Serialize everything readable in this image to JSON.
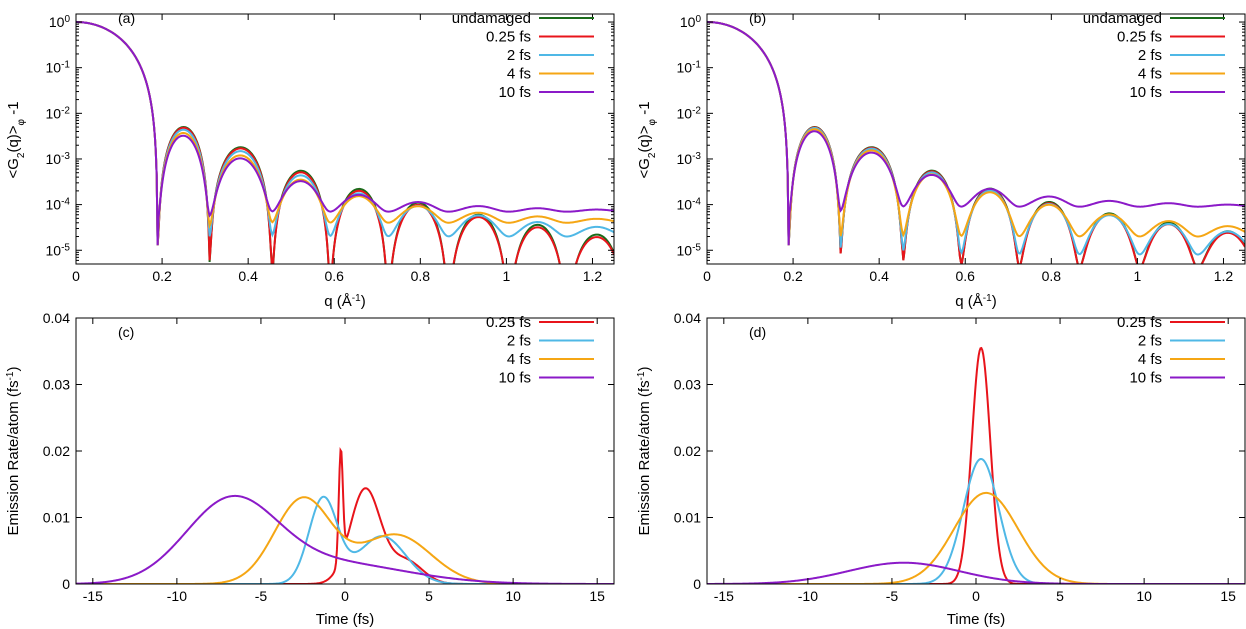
{
  "colors": {
    "undamaged": "#1a6b1a",
    "fs025": "#e8141b",
    "fs2": "#4fb8e6",
    "fs4": "#f5a614",
    "fs10": "#8b1ac8"
  },
  "chart_data": [
    {
      "id": "a",
      "panel_label": "(a)",
      "type": "line",
      "yscale": "log",
      "xlabel": "q (Å",
      "xlabel_sup": "-1",
      "xlabel_close": ")",
      "ylabel_main": "<G",
      "ylabel_sub": "2",
      "ylabel_mid": "(q)>",
      "ylabel_sub2": "φ",
      "ylabel_tail": " -1",
      "xlim": [
        0,
        1.25
      ],
      "ylim": [
        5e-06,
        1.5
      ],
      "xticks": [
        {
          "v": 0,
          "label": "0"
        },
        {
          "v": 0.2,
          "label": "0.2"
        },
        {
          "v": 0.4,
          "label": "0.4"
        },
        {
          "v": 0.6,
          "label": "0.6"
        },
        {
          "v": 0.8,
          "label": "0.8"
        },
        {
          "v": 1,
          "label": "1"
        },
        {
          "v": 1.2,
          "label": "1.2"
        }
      ],
      "yticks": [
        {
          "v": 1,
          "base": "10",
          "exp": "0"
        },
        {
          "v": 0.1,
          "base": "10",
          "exp": "-1"
        },
        {
          "v": 0.01,
          "base": "10",
          "exp": "-2"
        },
        {
          "v": 0.001,
          "base": "10",
          "exp": "-3"
        },
        {
          "v": 0.0001,
          "base": "10",
          "exp": "-4"
        },
        {
          "v": 1e-05,
          "base": "10",
          "exp": "-5"
        }
      ],
      "series": [
        {
          "name": "undamaged",
          "color_key": "undamaged",
          "decay": 0,
          "floor": 0,
          "phase": 0
        },
        {
          "name": "0.25 fs",
          "color_key": "fs025",
          "decay": 0.04,
          "floor": 1e-06,
          "phase": 0
        },
        {
          "name": "2 fs",
          "color_key": "fs2",
          "decay": 0.15,
          "floor": 2e-05,
          "phase": 0
        },
        {
          "name": "4 fs",
          "color_key": "fs4",
          "decay": 0.35,
          "floor": 4e-05,
          "phase": 0
        },
        {
          "name": "10 fs",
          "color_key": "fs10",
          "decay": 0.55,
          "floor": 7e-05,
          "phase": 0
        }
      ]
    },
    {
      "id": "b",
      "panel_label": "(b)",
      "type": "line",
      "yscale": "log",
      "xlabel": "q (Å",
      "xlabel_sup": "-1",
      "xlabel_close": ")",
      "ylabel_main": "<G",
      "ylabel_sub": "2",
      "ylabel_mid": "(q)>",
      "ylabel_sub2": "φ",
      "ylabel_tail": " -1",
      "xlim": [
        0,
        1.25
      ],
      "ylim": [
        5e-06,
        1.5
      ],
      "xticks": [
        {
          "v": 0,
          "label": "0"
        },
        {
          "v": 0.2,
          "label": "0.2"
        },
        {
          "v": 0.4,
          "label": "0.4"
        },
        {
          "v": 0.6,
          "label": "0.6"
        },
        {
          "v": 0.8,
          "label": "0.8"
        },
        {
          "v": 1,
          "label": "1"
        },
        {
          "v": 1.2,
          "label": "1.2"
        }
      ],
      "yticks": [
        {
          "v": 1,
          "base": "10",
          "exp": "0"
        },
        {
          "v": 0.1,
          "base": "10",
          "exp": "-1"
        },
        {
          "v": 0.01,
          "base": "10",
          "exp": "-2"
        },
        {
          "v": 0.001,
          "base": "10",
          "exp": "-3"
        },
        {
          "v": 0.0001,
          "base": "10",
          "exp": "-4"
        },
        {
          "v": 1e-05,
          "base": "10",
          "exp": "-5"
        }
      ],
      "series": [
        {
          "name": "undamaged",
          "color_key": "undamaged",
          "decay": 0,
          "floor": 4e-06,
          "phase": 0
        },
        {
          "name": "0.25 fs",
          "color_key": "fs025",
          "decay": 0.02,
          "floor": 4e-06,
          "phase": 0
        },
        {
          "name": "2 fs",
          "color_key": "fs2",
          "decay": 0.05,
          "floor": 8e-06,
          "phase": 0
        },
        {
          "name": "4 fs",
          "color_key": "fs4",
          "decay": 0.12,
          "floor": 2e-05,
          "phase": 0
        },
        {
          "name": "10 fs",
          "color_key": "fs10",
          "decay": 0.25,
          "floor": 9e-05,
          "phase": 0
        }
      ]
    },
    {
      "id": "c",
      "panel_label": "(c)",
      "type": "line",
      "yscale": "linear",
      "xlabel": "Time (fs)",
      "ylabel_main": "Emission Rate/atom (fs",
      "ylabel_sup": "-1",
      "ylabel_tail": ")",
      "xlim": [
        -16,
        16
      ],
      "ylim": [
        0,
        0.04
      ],
      "xticks": [
        {
          "v": -15,
          "label": "-15"
        },
        {
          "v": -10,
          "label": "-10"
        },
        {
          "v": -5,
          "label": "-5"
        },
        {
          "v": 0,
          "label": "0"
        },
        {
          "v": 5,
          "label": "5"
        },
        {
          "v": 10,
          "label": "10"
        },
        {
          "v": 15,
          "label": "15"
        }
      ],
      "yticks": [
        {
          "v": 0,
          "label": "0"
        },
        {
          "v": 0.01,
          "label": "0.01"
        },
        {
          "v": 0.02,
          "label": "0.02"
        },
        {
          "v": 0.03,
          "label": "0.03"
        },
        {
          "v": 0.04,
          "label": "0.04"
        }
      ],
      "series": [
        {
          "name": "0.25 fs",
          "color_key": "fs025",
          "peaks": [
            {
              "amp": 0.0165,
              "mu": -0.25,
              "sigma": 0.12
            },
            {
              "amp": 0.0142,
              "mu": 1.2,
              "sigma": 0.9
            },
            {
              "amp": 0.0035,
              "mu": 3.6,
              "sigma": 1.0
            }
          ]
        },
        {
          "name": "2 fs",
          "color_key": "fs2",
          "peaks": [
            {
              "amp": 0.0128,
              "mu": -1.3,
              "sigma": 0.85
            },
            {
              "amp": 0.0072,
              "mu": 2.2,
              "sigma": 1.4
            }
          ]
        },
        {
          "name": "4 fs",
          "color_key": "fs4",
          "peaks": [
            {
              "amp": 0.0128,
              "mu": -2.5,
              "sigma": 1.7
            },
            {
              "amp": 0.0074,
              "mu": 3.0,
              "sigma": 2.1
            }
          ]
        },
        {
          "name": "10 fs",
          "color_key": "fs10",
          "peaks": [
            {
              "amp": 0.0118,
              "mu": -6.8,
              "sigma": 2.7
            },
            {
              "amp": 0.0032,
              "mu": -1.0,
              "sigma": 4.5
            }
          ]
        }
      ]
    },
    {
      "id": "d",
      "panel_label": "(d)",
      "type": "line",
      "yscale": "linear",
      "xlabel": "Time (fs)",
      "ylabel_main": "Emission Rate/atom (fs",
      "ylabel_sup": "-1",
      "ylabel_tail": ")",
      "xlim": [
        -16,
        16
      ],
      "ylim": [
        0,
        0.04
      ],
      "xticks": [
        {
          "v": -15,
          "label": "-15"
        },
        {
          "v": -10,
          "label": "-10"
        },
        {
          "v": -5,
          "label": "-5"
        },
        {
          "v": 0,
          "label": "0"
        },
        {
          "v": 5,
          "label": "5"
        },
        {
          "v": 10,
          "label": "10"
        },
        {
          "v": 15,
          "label": "15"
        }
      ],
      "yticks": [
        {
          "v": 0,
          "label": "0"
        },
        {
          "v": 0.01,
          "label": "0.01"
        },
        {
          "v": 0.02,
          "label": "0.02"
        },
        {
          "v": 0.03,
          "label": "0.03"
        },
        {
          "v": 0.04,
          "label": "0.04"
        }
      ],
      "series": [
        {
          "name": "0.25 fs",
          "color_key": "fs025",
          "peaks": [
            {
              "amp": 0.0355,
              "mu": 0.3,
              "sigma": 0.55
            }
          ]
        },
        {
          "name": "2 fs",
          "color_key": "fs2",
          "peaks": [
            {
              "amp": 0.0188,
              "mu": 0.3,
              "sigma": 1.05
            }
          ]
        },
        {
          "name": "4 fs",
          "color_key": "fs4",
          "peaks": [
            {
              "amp": 0.0137,
              "mu": 0.6,
              "sigma": 1.9
            }
          ]
        },
        {
          "name": "10 fs",
          "color_key": "fs10",
          "peaks": [
            {
              "amp": 0.0032,
              "mu": -4.3,
              "sigma": 3.3
            }
          ]
        }
      ]
    }
  ]
}
